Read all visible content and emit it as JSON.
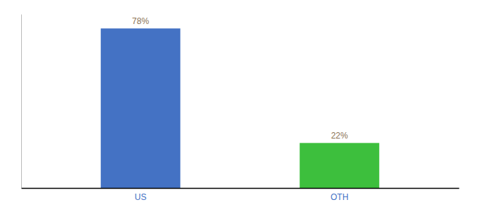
{
  "chart_data": {
    "type": "bar",
    "categories": [
      "US",
      "OTH"
    ],
    "values": [
      78,
      22
    ],
    "value_labels": [
      "78%",
      "22%"
    ],
    "colors": [
      "#4472C4",
      "#3DBF3D"
    ],
    "ylim": [
      0,
      85
    ],
    "data_labels": true,
    "tick_labels": "x"
  }
}
